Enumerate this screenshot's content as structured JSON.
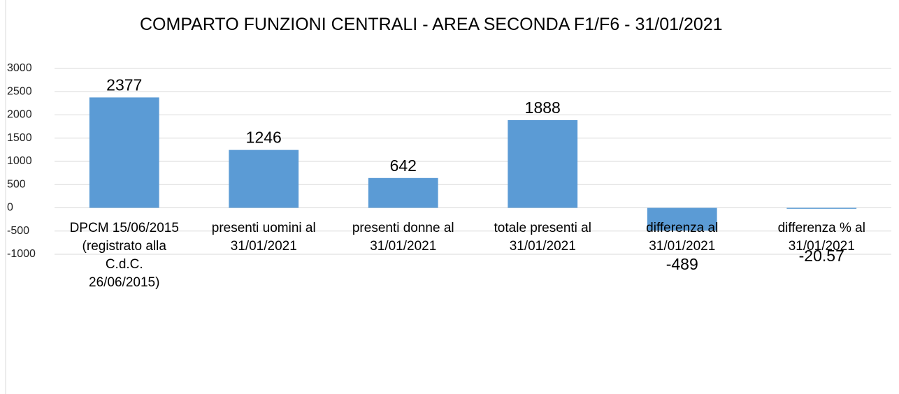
{
  "chart_data": {
    "type": "bar",
    "title": "COMPARTO FUNZIONI CENTRALI - AREA SECONDA F1/F6 - 31/01/2021",
    "categories": [
      "DPCM 15/06/2015 (registrato alla C.d.C. 26/06/2015)",
      "presenti uomini al 31/01/2021",
      "presenti donne al 31/01/2021",
      "totale presenti al 31/01/2021",
      "differenza al 31/01/2021",
      "differenza % al 31/01/2021"
    ],
    "values": [
      2377,
      1246,
      642,
      1888,
      -489,
      -20.57
    ],
    "color": "#5b9bd5",
    "ylim": [
      -1000,
      3000
    ],
    "yticks": [
      -1000,
      -500,
      0,
      500,
      1000,
      1500,
      2000,
      2500,
      3000
    ],
    "grid": true
  }
}
